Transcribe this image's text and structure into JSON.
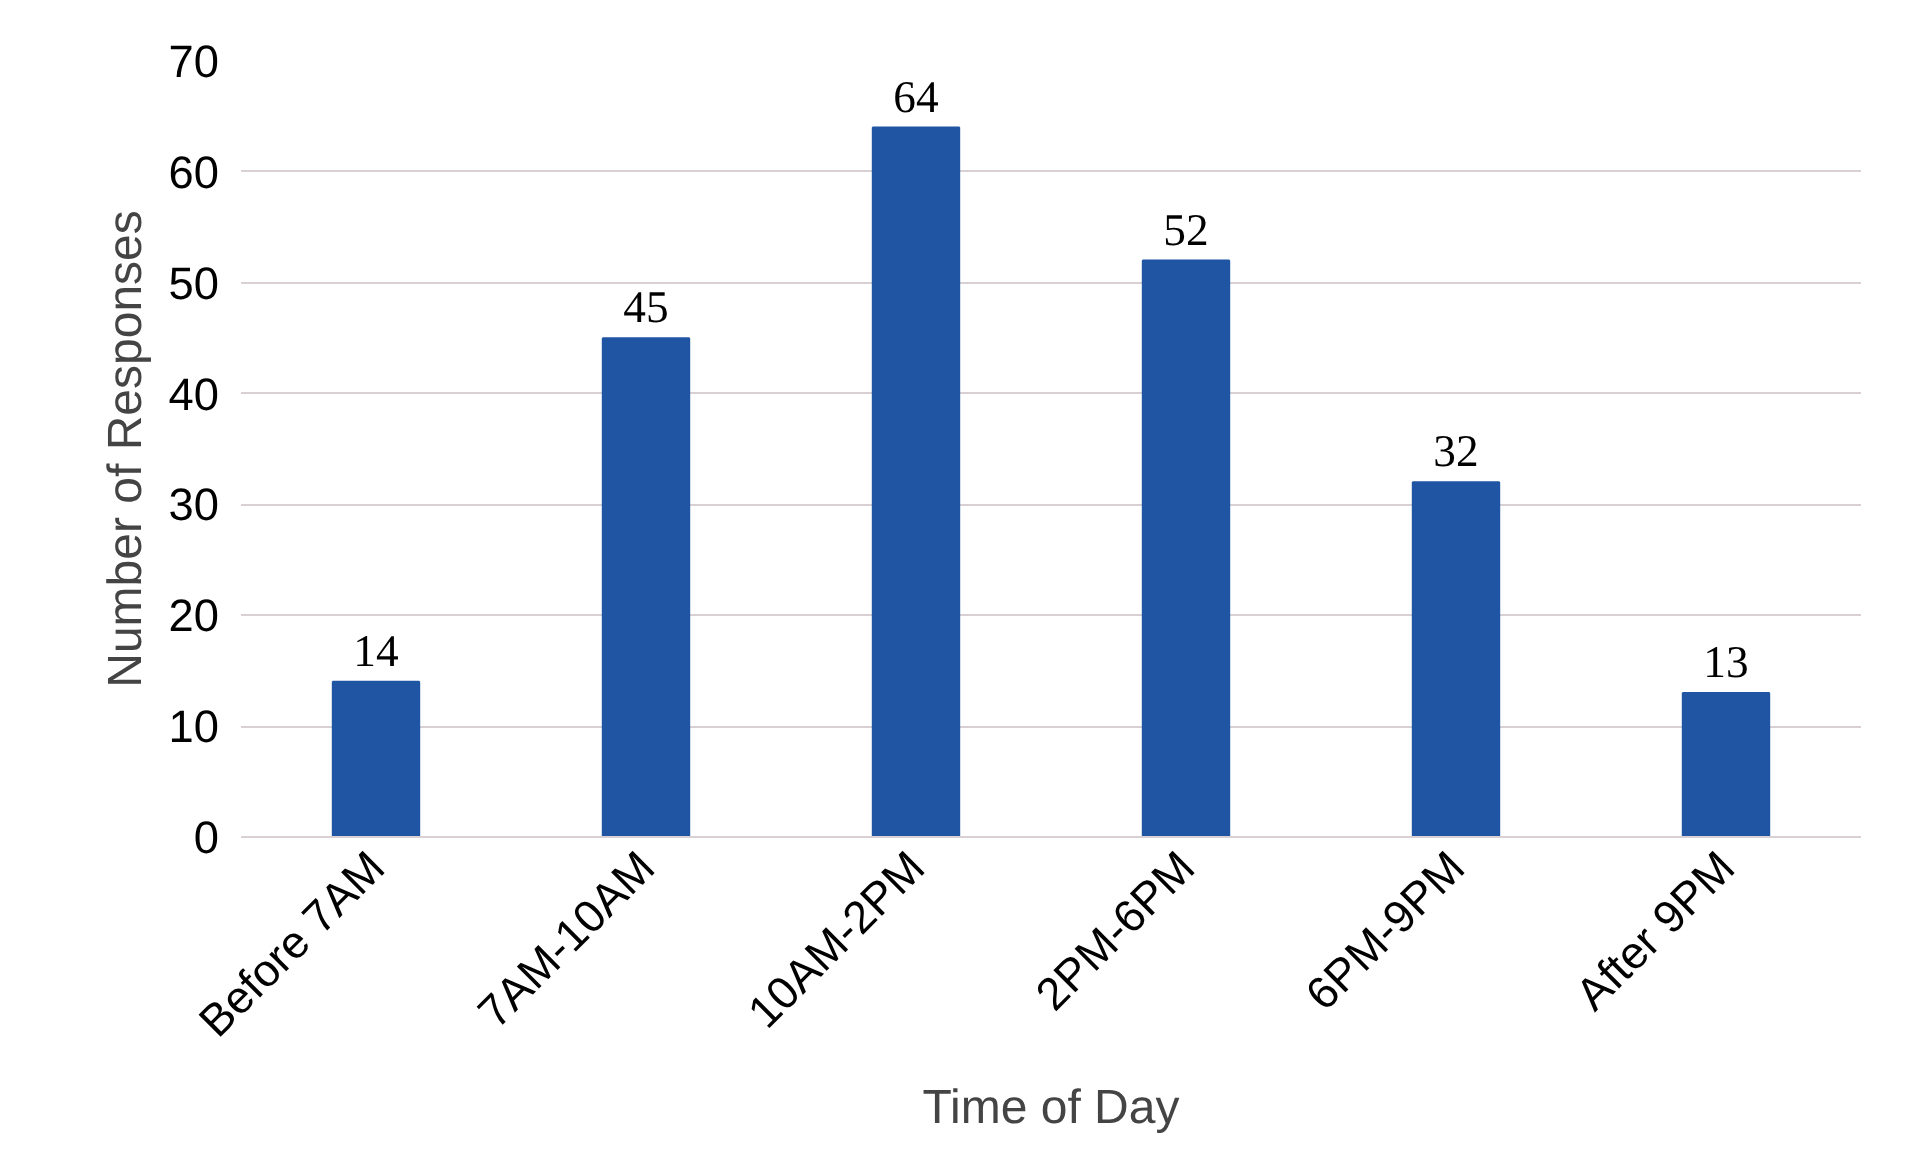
{
  "chart_data": {
    "type": "bar",
    "xlabel": "Time of Day",
    "ylabel": "Number of Responses",
    "categories": [
      "Before 7AM",
      "7AM-10AM",
      "10AM-2PM",
      "2PM-6PM",
      "6PM-9PM",
      "After 9PM"
    ],
    "values": [
      14,
      45,
      64,
      52,
      32,
      13
    ],
    "color": "#1f55a3",
    "ylim": [
      0,
      70
    ],
    "yticks": [
      0,
      10,
      20,
      30,
      40,
      50,
      60,
      70
    ],
    "grid": "y",
    "data_labels": true
  }
}
